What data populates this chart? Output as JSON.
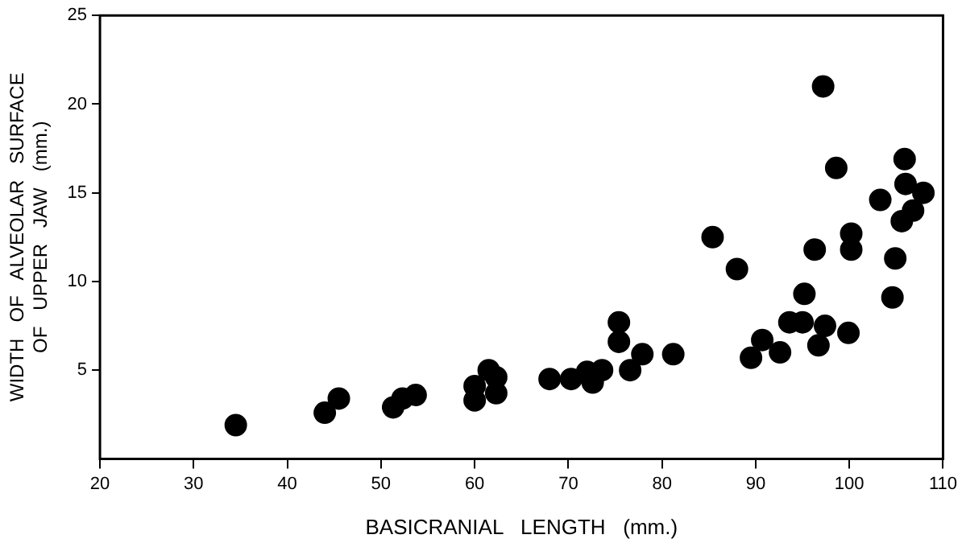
{
  "chart_data": {
    "type": "scatter",
    "xlabel": "BASICRANIAL   LENGTH   (mm.)",
    "ylabel": "WIDTH   OF   ALVEOLAR   SURFACE\nOF   UPPER   JAW   (mm.)",
    "x": [
      34.5,
      44,
      45.5,
      51.3,
      52.3,
      53.7,
      60,
      60,
      61.5,
      62.3,
      62.3,
      68,
      70.3,
      72,
      72.6,
      73.6,
      75.4,
      75.4,
      76.6,
      77.9,
      81.2,
      85.4,
      88,
      89.5,
      90.7,
      92.6,
      93.6,
      95,
      95.2,
      96.3,
      96.7,
      97.4,
      97.2,
      98.6,
      99.9,
      100.2,
      100.2,
      103.3,
      104.6,
      104.9,
      105.6,
      105.9,
      106,
      106.8,
      107.9
    ],
    "values": [
      1.9,
      2.6,
      3.4,
      2.9,
      3.4,
      3.6,
      3.3,
      4.1,
      5.0,
      4.6,
      3.7,
      4.5,
      4.5,
      4.9,
      4.3,
      5.0,
      7.7,
      6.6,
      5.0,
      5.9,
      5.9,
      12.5,
      10.7,
      5.7,
      6.7,
      6.0,
      7.7,
      7.7,
      9.3,
      11.8,
      6.4,
      7.5,
      21.0,
      16.4,
      7.1,
      11.8,
      12.7,
      14.6,
      9.1,
      11.3,
      13.4,
      16.9,
      15.5,
      14.0,
      15.0
    ],
    "color": "#000000",
    "marker": "circle",
    "grid": false,
    "legend": false,
    "xlim": [
      20,
      110
    ],
    "xticks": [
      20,
      30,
      40,
      50,
      60,
      70,
      80,
      90,
      100,
      110
    ],
    "ylim": [
      0,
      25
    ],
    "yticks": [
      5,
      10,
      15,
      20,
      25
    ]
  }
}
